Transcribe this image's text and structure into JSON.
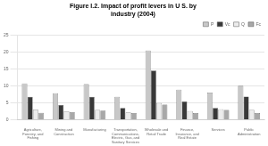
{
  "chart_data": {
    "type": "bar",
    "title": "Figure I.2. Impact of profit levers in U S. by\nindustry (2004)",
    "categories": [
      "Agriculture,\nForestry, and\nFishing",
      "Mining and\nConstruction",
      "Manufacturing",
      "Transportation,\nCommunications,\nElectric, Gas, and\nSanitary Services",
      "Wholesale and\nRetail Trade",
      "Finance,\nInsurance, and\nReal Estate",
      "Services",
      "Public\nAdministration"
    ],
    "series": [
      {
        "name": "P",
        "color": "#c8c8c8",
        "values": [
          10.8,
          7.9,
          10.6,
          6.8,
          20.5,
          8.9,
          8.1,
          10.1
        ]
      },
      {
        "name": "Vc",
        "color": "#383838",
        "values": [
          6.8,
          4.4,
          6.8,
          3.5,
          14.6,
          5.4,
          3.5,
          6.9
        ]
      },
      {
        "name": "Q",
        "color": "#ececec",
        "values": [
          3.0,
          2.5,
          2.9,
          2.2,
          5.0,
          2.6,
          3.1,
          2.9
        ]
      },
      {
        "name": "Fc",
        "color": "#a8a8a8",
        "values": [
          2.1,
          2.3,
          2.7,
          2.0,
          4.5,
          2.0,
          2.9,
          2.0
        ]
      }
    ],
    "ylim": [
      0,
      25
    ],
    "yticks": [
      0,
      5,
      10,
      15,
      20,
      25
    ],
    "grid": true,
    "legend": "upper right"
  }
}
